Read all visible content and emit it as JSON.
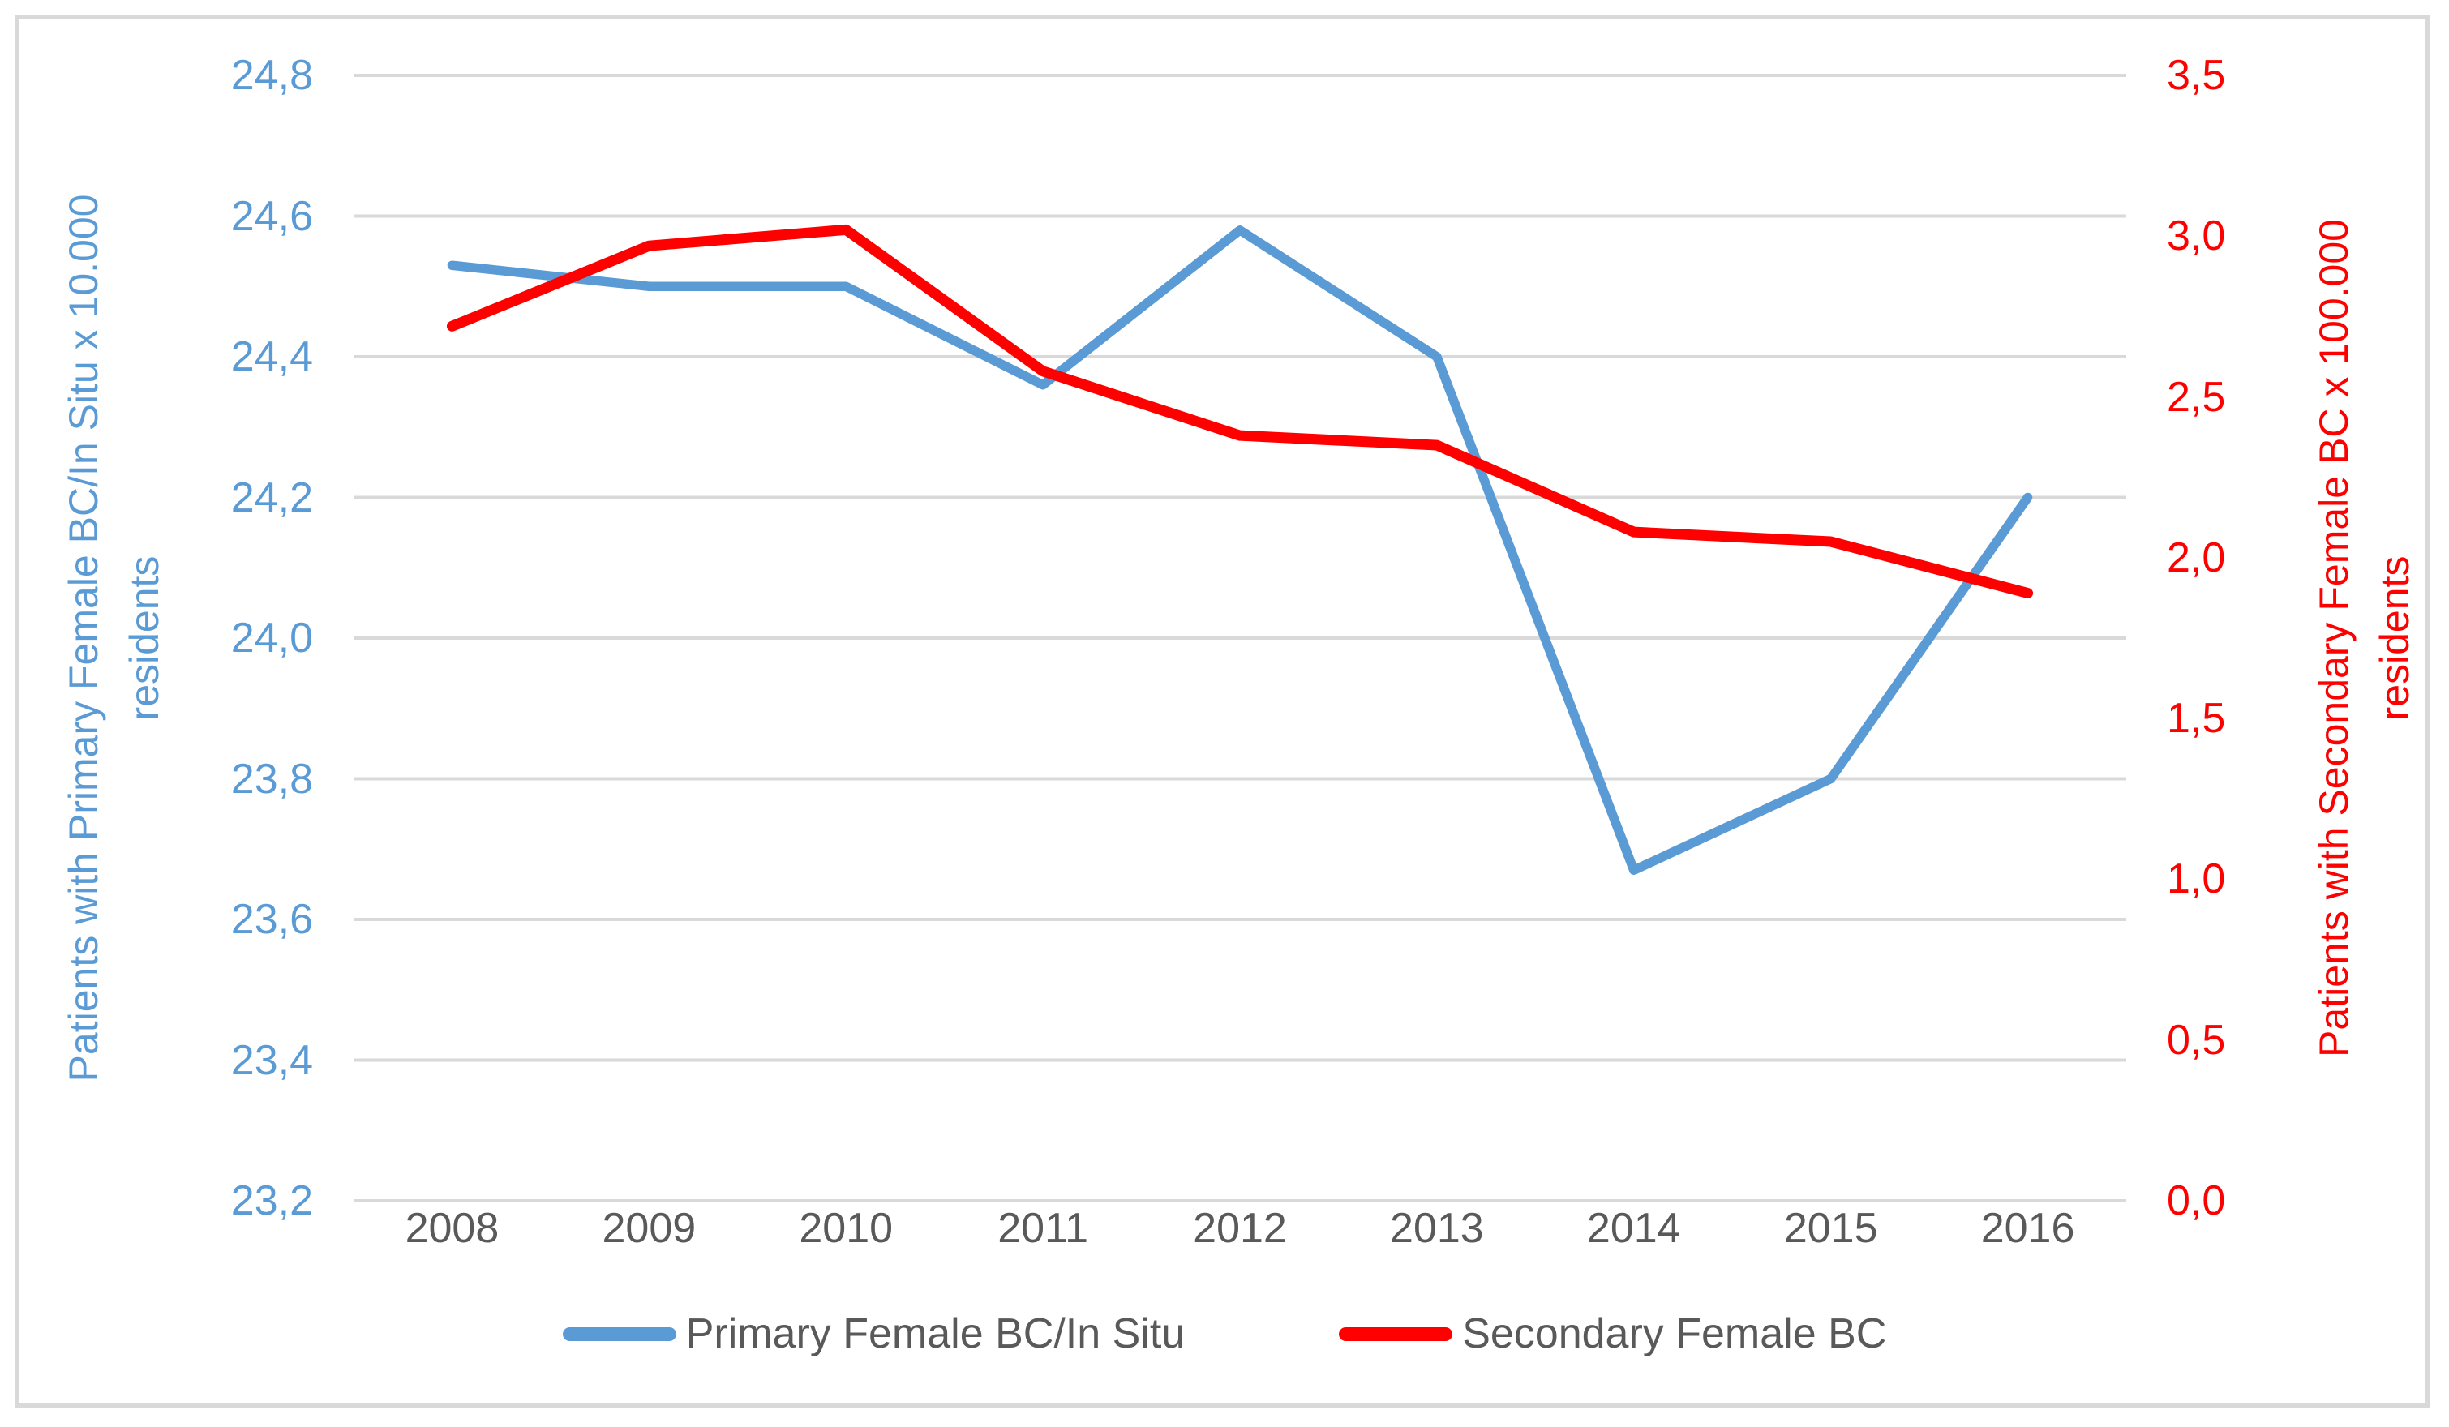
{
  "chart_data": {
    "type": "line",
    "categories": [
      "2008",
      "2009",
      "2010",
      "2011",
      "2012",
      "2013",
      "2014",
      "2015",
      "2016"
    ],
    "series": [
      {
        "name": "Primary Female BC/In Situ",
        "axis": "left",
        "color": "#5b9bd5",
        "values": [
          24.53,
          24.5,
          24.5,
          24.36,
          24.58,
          24.4,
          23.67,
          23.8,
          24.2
        ]
      },
      {
        "name": "Secondary Female BC",
        "axis": "right",
        "color": "#ff0000",
        "values": [
          2.72,
          2.97,
          3.02,
          2.58,
          2.38,
          2.35,
          2.08,
          2.05,
          1.89
        ]
      }
    ],
    "left_axis": {
      "title": "Patients with Primary Female BC/In Situ x 10.000 residents",
      "title_lines": [
        "Patients with Primary Female BC/In Situ x 10.000",
        "residents"
      ],
      "min": 23.2,
      "max": 24.8,
      "step": 0.2,
      "tick_labels": [
        "24,8",
        "24,6",
        "24,4",
        "24,2",
        "24,0",
        "23,8",
        "23,6",
        "23,4",
        "23,2"
      ],
      "color": "#5b9bd5"
    },
    "right_axis": {
      "title": "Patients with Secondary Female BC x 100.000 residents",
      "title_lines": [
        "Patients with Secondary Female BC x 100.000",
        "residents"
      ],
      "min": 0.0,
      "max": 3.5,
      "step": 0.5,
      "tick_labels": [
        "3,5",
        "3,0",
        "2,5",
        "2,0",
        "1,5",
        "1,0",
        "0,5",
        "0,0"
      ],
      "color": "#ff0000"
    },
    "x_axis": {
      "labels": [
        "2008",
        "2009",
        "2010",
        "2011",
        "2012",
        "2013",
        "2014",
        "2015",
        "2016"
      ],
      "color": "#595959"
    },
    "legend": [
      {
        "label": "Primary Female BC/In Situ",
        "color": "#5b9bd5"
      },
      {
        "label": "Secondary Female BC",
        "color": "#ff0000"
      }
    ],
    "legend_position": "bottom",
    "grid": true,
    "gridline_color": "#d9d9d9",
    "border_color": "#d9d9d9"
  }
}
